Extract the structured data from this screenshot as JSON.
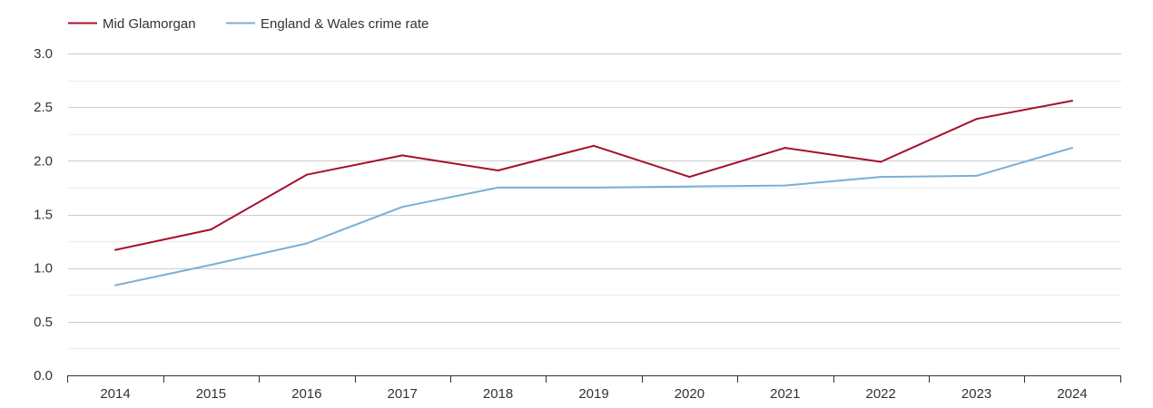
{
  "chart_data": {
    "type": "line",
    "x": [
      "2014",
      "2015",
      "2016",
      "2017",
      "2018",
      "2019",
      "2020",
      "2021",
      "2022",
      "2023",
      "2024"
    ],
    "series": [
      {
        "name": "Mid Glamorgan",
        "color": "#a50f2d",
        "values": [
          1.17,
          1.36,
          1.87,
          2.05,
          1.91,
          2.14,
          1.85,
          2.12,
          1.99,
          2.39,
          2.56
        ]
      },
      {
        "name": "England & Wales crime rate",
        "color": "#7bafd4",
        "values": [
          0.84,
          1.03,
          1.23,
          1.57,
          1.75,
          1.75,
          1.76,
          1.77,
          1.85,
          1.86,
          2.12
        ]
      }
    ],
    "yticks": [
      "0.0",
      "0.5",
      "1.0",
      "1.5",
      "2.0",
      "2.5",
      "3.0"
    ],
    "ylim": [
      0,
      3
    ],
    "grid": true,
    "legend_position": "top-left",
    "title": "",
    "xlabel": "",
    "ylabel": ""
  }
}
